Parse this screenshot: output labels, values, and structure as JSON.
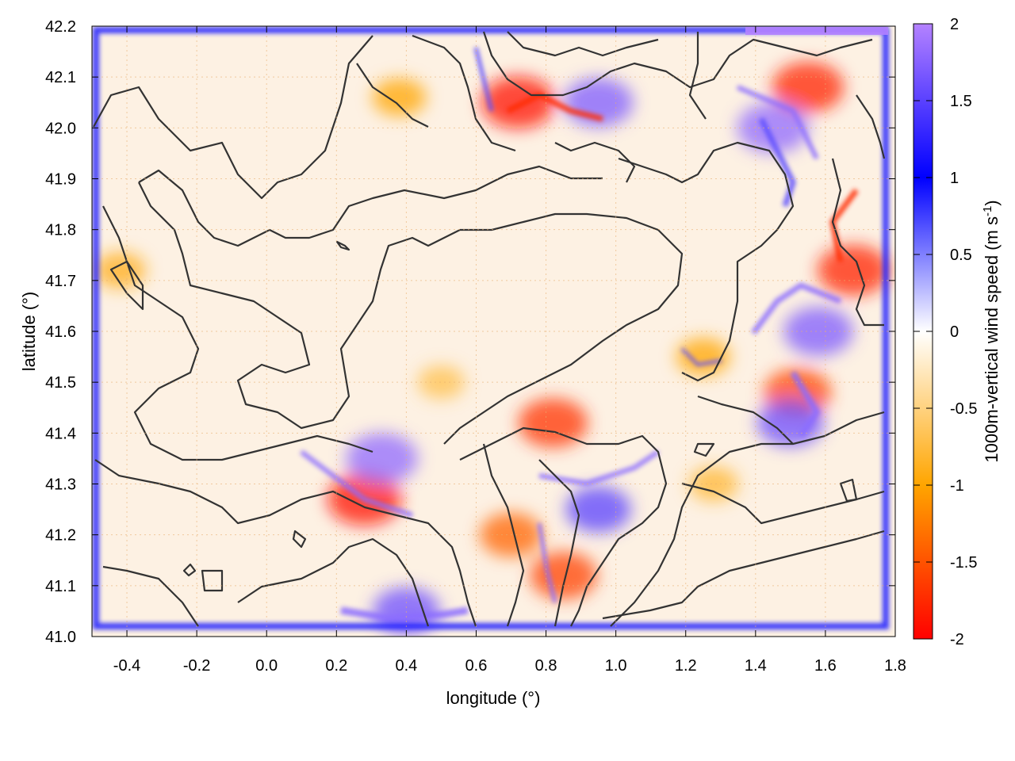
{
  "chart_data": {
    "type": "heatmap",
    "title": "",
    "xlabel": "longitude (°)",
    "ylabel": "latitude (°)",
    "colorbar_label": "1000m-vertical wind speed (m s-1)",
    "colorbar_label_parts": {
      "main": "1000m-vertical wind speed (m s",
      "sup": "-1",
      "end": ")"
    },
    "xlim": [
      -0.5,
      1.8
    ],
    "ylim": [
      41.0,
      42.2
    ],
    "zlim": [
      -2,
      2
    ],
    "x_ticks": [
      -0.4,
      -0.2,
      0.0,
      0.2,
      0.4,
      0.6,
      0.8,
      1.0,
      1.2,
      1.4,
      1.6,
      1.8
    ],
    "x_tick_labels": [
      "-0.4",
      "-0.2",
      "0.0",
      "0.2",
      "0.4",
      "0.6",
      "0.8",
      "1.0",
      "1.2",
      "1.4",
      "1.6",
      "1.8"
    ],
    "y_ticks": [
      41.0,
      41.1,
      41.2,
      41.3,
      41.4,
      41.5,
      41.6,
      41.7,
      41.8,
      41.9,
      42.0,
      42.1,
      42.2
    ],
    "y_tick_labels": [
      "41.0",
      "41.1",
      "41.2",
      "41.3",
      "41.4",
      "41.5",
      "41.6",
      "41.7",
      "41.8",
      "41.9",
      "42.0",
      "42.1",
      "42.2"
    ],
    "colorbar_ticks": [
      -2,
      -1.5,
      -1,
      -0.5,
      0,
      0.5,
      1,
      1.5,
      2
    ],
    "colorbar_tick_labels": [
      "-2",
      "-1.5",
      "-1",
      "-0.5",
      "0",
      "0.5",
      "1",
      "1.5",
      "2"
    ],
    "colormap": [
      {
        "value": -2,
        "color": "#ff0000"
      },
      {
        "value": -1,
        "color": "#ffa500"
      },
      {
        "value": 0,
        "color": "#ffffff"
      },
      {
        "value": 1,
        "color": "#0000ff"
      },
      {
        "value": 2,
        "color": "#b482ff"
      }
    ],
    "grid": "dotted",
    "contour_color": "#333333",
    "notable_features": [
      {
        "lon": 0.28,
        "lat": 41.27,
        "value": -1.9
      },
      {
        "lon": 0.33,
        "lat": 41.35,
        "value": 1.8
      },
      {
        "lon": 0.82,
        "lat": 41.42,
        "value": -1.7
      },
      {
        "lon": 0.85,
        "lat": 41.12,
        "value": -1.6
      },
      {
        "lon": 0.72,
        "lat": 42.05,
        "value": -1.9
      },
      {
        "lon": 0.95,
        "lat": 42.05,
        "value": 1.7
      },
      {
        "lon": 1.55,
        "lat": 42.08,
        "value": -1.8
      },
      {
        "lon": 1.45,
        "lat": 42.0,
        "value": 1.8
      },
      {
        "lon": 1.68,
        "lat": 41.72,
        "value": -1.8
      },
      {
        "lon": 1.58,
        "lat": 41.6,
        "value": 1.7
      },
      {
        "lon": 1.52,
        "lat": 41.48,
        "value": -1.6
      },
      {
        "lon": 1.5,
        "lat": 41.42,
        "value": 1.6
      },
      {
        "lon": 1.25,
        "lat": 41.55,
        "value": -1.0
      },
      {
        "lon": 0.38,
        "lat": 42.06,
        "value": -1.0
      },
      {
        "lon": -0.42,
        "lat": 41.72,
        "value": -0.9
      },
      {
        "lon": 0.95,
        "lat": 41.25,
        "value": 1.5
      },
      {
        "lon": 0.7,
        "lat": 41.2,
        "value": -1.4
      },
      {
        "lon": 0.4,
        "lat": 41.05,
        "value": 1.6
      },
      {
        "lon": 1.28,
        "lat": 41.3,
        "value": -0.8
      },
      {
        "lon": 0.5,
        "lat": 41.5,
        "value": -0.7
      }
    ]
  }
}
